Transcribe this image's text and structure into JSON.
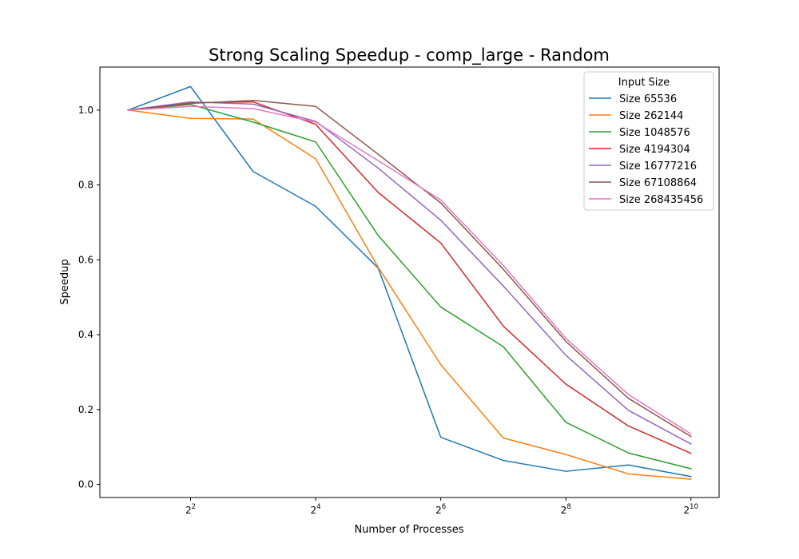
{
  "chart_data": {
    "type": "line",
    "title": "Strong Scaling Speedup - comp_large - Random",
    "xlabel": "Number of Processes",
    "ylabel": "Speedup",
    "x_scale": "log2",
    "x": [
      2,
      4,
      8,
      16,
      32,
      64,
      128,
      256,
      512,
      1024
    ],
    "xticks": [
      4,
      16,
      64,
      256,
      1024
    ],
    "xtick_labels": [
      {
        "base": "2",
        "exp": "2"
      },
      {
        "base": "2",
        "exp": "4"
      },
      {
        "base": "2",
        "exp": "6"
      },
      {
        "base": "2",
        "exp": "8"
      },
      {
        "base": "2",
        "exp": "10"
      }
    ],
    "ylim": [
      -0.035,
      1.115
    ],
    "yticks": [
      0.0,
      0.2,
      0.4,
      0.6,
      0.8,
      1.0
    ],
    "ytick_labels": [
      "0.0",
      "0.2",
      "0.4",
      "0.6",
      "0.8",
      "1.0"
    ],
    "grid": false,
    "legend_title": "Input Size",
    "legend_position": "top-right",
    "series": [
      {
        "name": "Size 65536",
        "color": "#1f77b4",
        "values": [
          1.0,
          1.063,
          0.836,
          0.743,
          0.578,
          0.126,
          0.064,
          0.035,
          0.052,
          0.021
        ]
      },
      {
        "name": "Size 262144",
        "color": "#ff7f0e",
        "values": [
          1.0,
          0.978,
          0.976,
          0.87,
          0.58,
          0.32,
          0.124,
          0.08,
          0.028,
          0.014
        ]
      },
      {
        "name": "Size 1048576",
        "color": "#2ca02c",
        "values": [
          1.0,
          1.015,
          0.968,
          0.915,
          0.665,
          0.474,
          0.368,
          0.166,
          0.084,
          0.042
        ]
      },
      {
        "name": "Size 4194304",
        "color": "#d62728",
        "values": [
          1.0,
          1.02,
          1.022,
          0.962,
          0.78,
          0.645,
          0.423,
          0.268,
          0.156,
          0.083
        ]
      },
      {
        "name": "Size 16777216",
        "color": "#9467bd",
        "values": [
          1.0,
          1.022,
          1.016,
          0.97,
          0.845,
          0.706,
          0.53,
          0.345,
          0.198,
          0.108
        ]
      },
      {
        "name": "Size 67108864",
        "color": "#8c564b",
        "values": [
          1.0,
          1.018,
          1.026,
          1.01,
          0.882,
          0.752,
          0.575,
          0.382,
          0.23,
          0.128
        ]
      },
      {
        "name": "Size 268435456",
        "color": "#e377c2",
        "values": [
          1.0,
          1.01,
          1.004,
          0.968,
          0.865,
          0.76,
          0.585,
          0.39,
          0.24,
          0.135
        ]
      }
    ]
  }
}
